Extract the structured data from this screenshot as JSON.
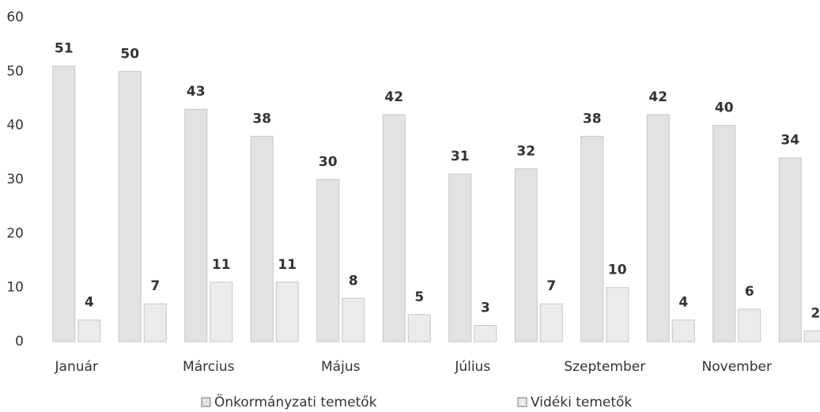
{
  "chart_data": {
    "type": "bar",
    "categories": [
      "Január",
      null,
      "Március",
      null,
      "Május",
      null,
      "Július",
      null,
      "Szeptember",
      null,
      "November",
      null
    ],
    "series": [
      {
        "name": "Önkormányzati temetők",
        "color": "#e2e2e2",
        "values": [
          51,
          50,
          43,
          38,
          30,
          42,
          31,
          32,
          38,
          42,
          40,
          34
        ]
      },
      {
        "name": "Vidéki temetők",
        "color": "#ebebeb",
        "values": [
          4,
          7,
          11,
          11,
          8,
          5,
          3,
          7,
          10,
          4,
          6,
          2
        ]
      }
    ],
    "ylim": [
      0,
      60
    ],
    "yticks": [
      0,
      10,
      20,
      30,
      40,
      50,
      60
    ],
    "grid": false
  }
}
